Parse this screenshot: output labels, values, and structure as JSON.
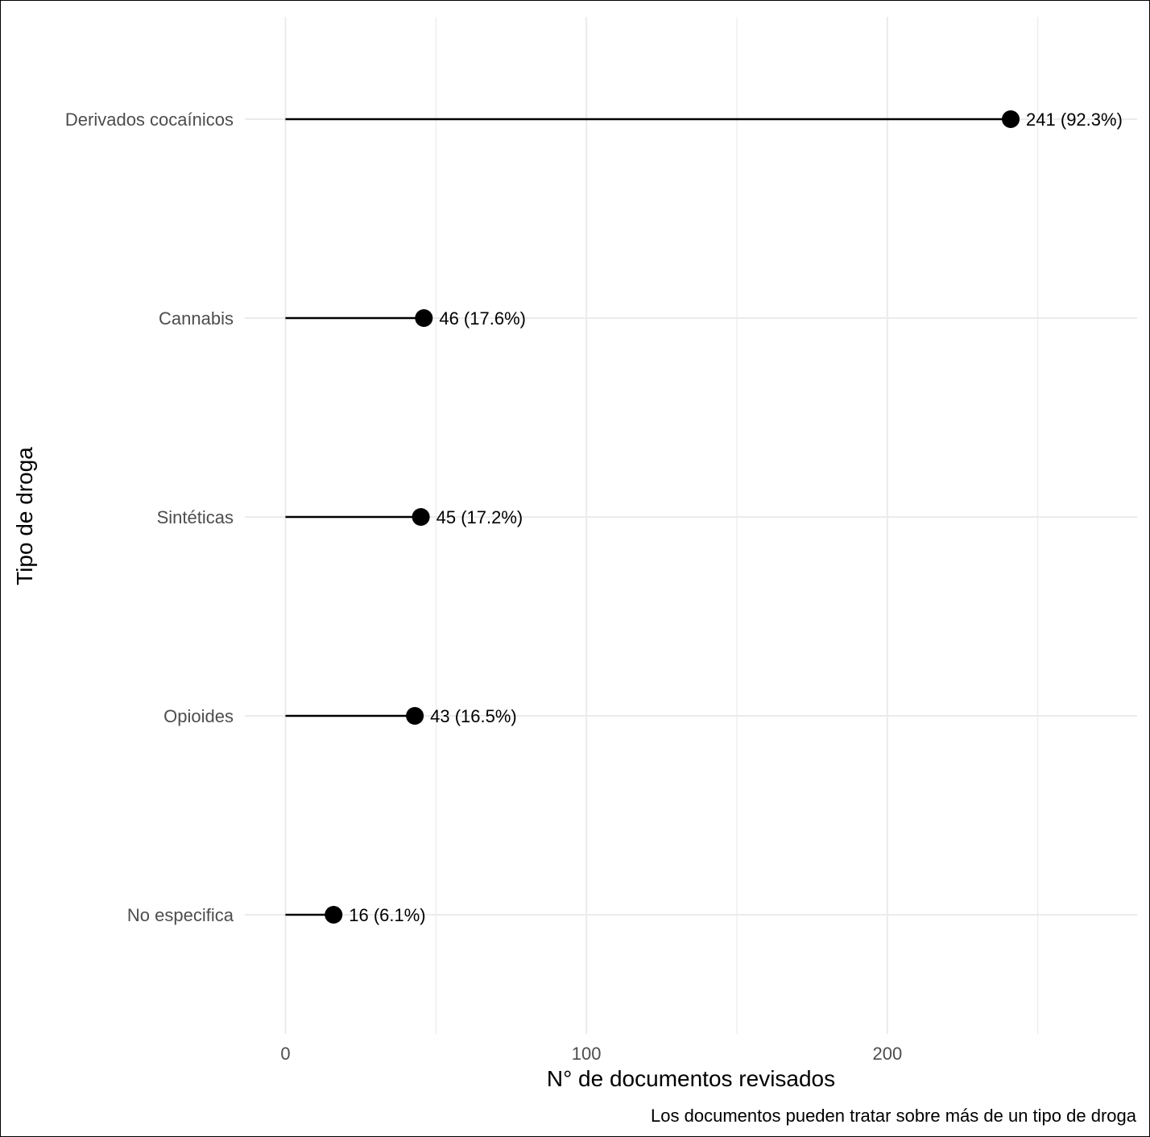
{
  "chart_data": {
    "type": "lollipop",
    "orientation": "horizontal",
    "categories": [
      "Derivados cocaínicos",
      "Cannabis",
      "Sintéticas",
      "Opioides",
      "No especifica"
    ],
    "values": [
      241,
      46,
      45,
      43,
      16
    ],
    "percents": [
      92.3,
      17.6,
      17.2,
      16.5,
      6.1
    ],
    "data_labels": [
      "241 (92.3%)",
      "46 (17.6%)",
      "45 (17.2%)",
      "43 (16.5%)",
      "16 (6.1%)"
    ],
    "xlabel": "N° de documentos revisados",
    "ylabel": "Tipo de droga",
    "caption": "Los documentos pueden tratar sobre más de un tipo de droga",
    "xticks": [
      "0",
      "100",
      "200"
    ],
    "xlim": [
      -13.5,
      283
    ],
    "grid": true,
    "colors": {
      "point": "#000000",
      "segment": "#000000",
      "grid": "#ebebeb",
      "tick_text": "#4d4d4d"
    }
  }
}
